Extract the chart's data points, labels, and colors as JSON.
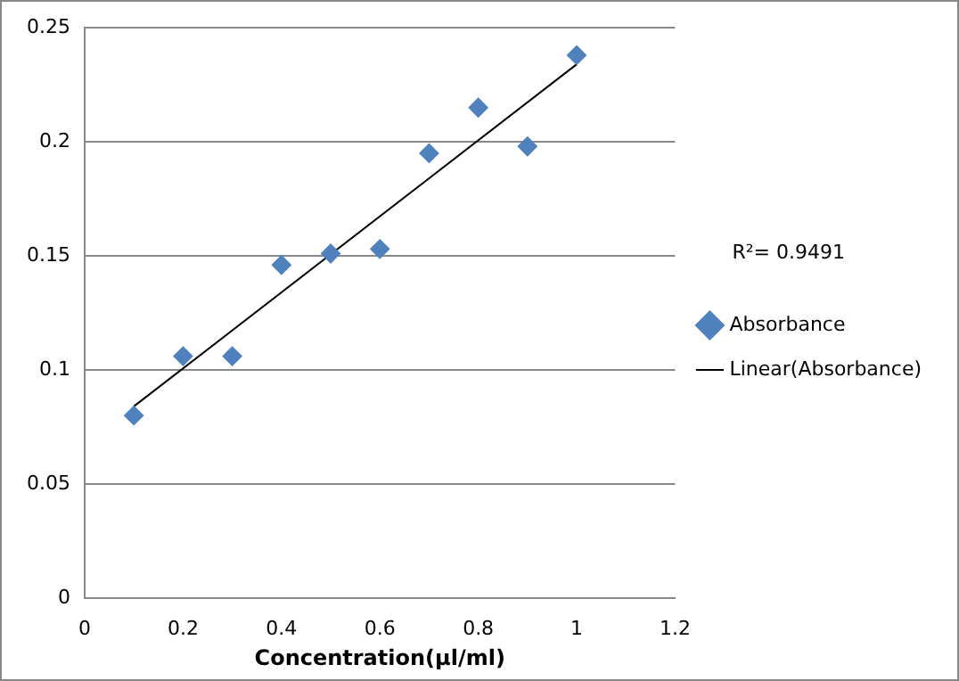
{
  "chart_data": {
    "type": "scatter",
    "xlabel": "Concentration(μl/ml)",
    "annotations": [
      "R²= 0.9491"
    ],
    "xlim": [
      0,
      1.2
    ],
    "xticks": [
      0,
      0.2,
      0.4,
      0.6,
      0.8,
      1,
      1.2
    ],
    "ylim": [
      0,
      0.25
    ],
    "yticks": [
      0,
      0.05,
      0.1,
      0.15,
      0.2,
      0.25
    ],
    "grid": "y",
    "legend": "right",
    "marker": "diamond",
    "series": [
      {
        "name": "Absorbance",
        "color": "#4f81bd",
        "x": [
          0.1,
          0.2,
          0.3,
          0.4,
          0.5,
          0.6,
          0.7,
          0.8,
          0.9,
          1.0
        ],
        "values": [
          0.08,
          0.106,
          0.106,
          0.146,
          0.151,
          0.153,
          0.195,
          0.215,
          0.198,
          0.238
        ]
      },
      {
        "name": "Linear(Absorbance)",
        "type": "line",
        "color": "#000000",
        "marker": "none",
        "x": [
          0.1,
          1.0
        ],
        "values": [
          0.084,
          0.234
        ]
      }
    ]
  }
}
